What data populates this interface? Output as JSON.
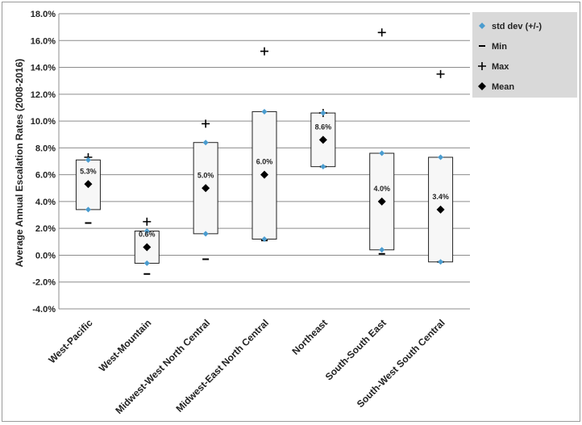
{
  "chart_data": {
    "type": "box",
    "title": "",
    "ylabel": "Average Annual Escalation Rates (2008-2016)",
    "xlabel": "",
    "ylim": [
      -4,
      18
    ],
    "y_ticks": [
      "-4.0%",
      "-2.0%",
      "0.0%",
      "2.0%",
      "4.0%",
      "6.0%",
      "8.0%",
      "10.0%",
      "12.0%",
      "14.0%",
      "16.0%",
      "18.0%"
    ],
    "grid": true,
    "legend_position": "top-right",
    "legend": [
      {
        "key": "stddev",
        "label": "std dev (+/-)",
        "color": "#4a9ccf"
      },
      {
        "key": "min",
        "label": "Min",
        "color": "#000000"
      },
      {
        "key": "max",
        "label": "Max",
        "color": "#000000"
      },
      {
        "key": "mean",
        "label": "Mean",
        "color": "#000000"
      }
    ],
    "categories": [
      "West-Pacific",
      "West-Mountain",
      "Midwest-West North Central",
      "Midwest-East North Central",
      "Northeast",
      "South-South East",
      "South-West South Central"
    ],
    "series": [
      {
        "key": "mean",
        "name": "Mean",
        "values": [
          5.3,
          0.6,
          5.0,
          6.0,
          8.6,
          4.0,
          3.4
        ]
      },
      {
        "key": "std_low",
        "name": "std dev (+/-)",
        "values": [
          3.4,
          -0.6,
          1.6,
          1.2,
          6.6,
          0.4,
          -0.5
        ]
      },
      {
        "key": "std_high",
        "name": "std dev (+/-)",
        "values": [
          7.1,
          1.8,
          8.4,
          10.7,
          10.6,
          7.6,
          7.3
        ]
      },
      {
        "key": "min",
        "name": "Min",
        "values": [
          2.4,
          -1.4,
          -0.3,
          1.1,
          6.6,
          0.1,
          -0.5
        ]
      },
      {
        "key": "max",
        "name": "Max",
        "values": [
          7.3,
          2.5,
          9.8,
          15.2,
          10.6,
          16.6,
          13.5
        ]
      }
    ],
    "mean_labels": [
      "5.3%",
      "0.6%",
      "5.0%",
      "6.0%",
      "8.6%",
      "4.0%",
      "3.4%"
    ]
  }
}
